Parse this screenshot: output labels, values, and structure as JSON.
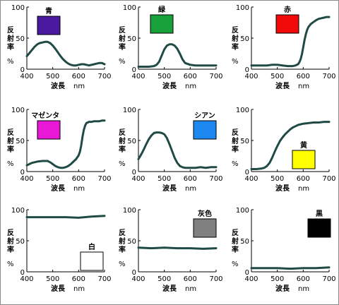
{
  "chart_data": [
    {
      "type": "line",
      "color_label": "青",
      "swatch_color": "#4b19a0",
      "ylabel": "反射率 %",
      "xlabel": "波長",
      "xunit": "nm",
      "xlim": [
        400,
        700
      ],
      "ylim": [
        0,
        100
      ],
      "x_ticks": [
        400,
        500,
        600,
        700
      ],
      "y_ticks": [
        0,
        50,
        100
      ],
      "x": [
        400,
        410,
        420,
        430,
        440,
        450,
        460,
        470,
        480,
        490,
        500,
        510,
        520,
        530,
        540,
        550,
        560,
        570,
        580,
        590,
        600,
        610,
        620,
        630,
        640,
        650,
        660,
        670,
        680,
        690,
        700
      ],
      "y": [
        21,
        26,
        31,
        36,
        40,
        42,
        43,
        44,
        44,
        42,
        38,
        33,
        27,
        21,
        16,
        12,
        9,
        7,
        6,
        6,
        7,
        8,
        8,
        7,
        6,
        7,
        8,
        9,
        10,
        10,
        8
      ]
    },
    {
      "type": "line",
      "color_label": "緑",
      "swatch_color": "#18a03a",
      "ylabel": "反射率 %",
      "xlabel": "波長",
      "xunit": "nm",
      "xlim": [
        400,
        700
      ],
      "ylim": [
        0,
        100
      ],
      "x_ticks": [
        400,
        500,
        600,
        700
      ],
      "y_ticks": [
        0,
        50,
        100
      ],
      "x": [
        400,
        420,
        440,
        460,
        470,
        480,
        490,
        500,
        510,
        520,
        530,
        540,
        550,
        560,
        570,
        580,
        600,
        620,
        640,
        660,
        680,
        700
      ],
      "y": [
        4,
        4,
        4,
        5,
        7,
        12,
        22,
        32,
        38,
        40,
        40,
        38,
        33,
        25,
        16,
        10,
        7,
        6,
        6,
        6,
        6,
        6
      ]
    },
    {
      "type": "line",
      "color_label": "赤",
      "swatch_color": "#f00a0a",
      "ylabel": "反射率 %",
      "xlabel": "波長",
      "xunit": "nm",
      "xlim": [
        400,
        700
      ],
      "ylim": [
        0,
        100
      ],
      "x_ticks": [
        400,
        500,
        600,
        700
      ],
      "y_ticks": [
        0,
        50,
        100
      ],
      "x": [
        400,
        420,
        440,
        460,
        480,
        500,
        520,
        540,
        560,
        570,
        580,
        585,
        590,
        595,
        600,
        605,
        610,
        615,
        620,
        630,
        640,
        650,
        660,
        670,
        680,
        690,
        700
      ],
      "y": [
        6,
        6,
        6,
        6,
        7,
        7,
        6,
        5,
        5,
        6,
        8,
        11,
        16,
        24,
        35,
        47,
        56,
        63,
        68,
        73,
        76,
        79,
        81,
        82,
        83,
        84,
        84
      ]
    },
    {
      "type": "line",
      "color_label": "マゼンタ",
      "swatch_color": "#e818d6",
      "ylabel": "反射率 %",
      "xlabel": "波長",
      "xunit": "nm",
      "xlim": [
        400,
        700
      ],
      "ylim": [
        0,
        100
      ],
      "x_ticks": [
        400,
        500,
        600,
        700
      ],
      "y_ticks": [
        0,
        50,
        100
      ],
      "x": [
        400,
        410,
        420,
        430,
        440,
        460,
        480,
        490,
        500,
        510,
        520,
        530,
        540,
        550,
        560,
        570,
        580,
        590,
        600,
        605,
        610,
        615,
        620,
        625,
        630,
        640,
        650,
        660,
        670,
        680,
        690,
        700
      ],
      "y": [
        10,
        12,
        14,
        15,
        16,
        17,
        17,
        15,
        12,
        9,
        7,
        6,
        6,
        7,
        9,
        12,
        16,
        20,
        26,
        32,
        42,
        56,
        67,
        74,
        78,
        80,
        80,
        81,
        81,
        81,
        82,
        82
      ]
    },
    {
      "type": "line",
      "color_label": "シアン",
      "swatch_color": "#1c88f0",
      "ylabel": "反射率 %",
      "xlabel": "波長",
      "xunit": "nm",
      "xlim": [
        400,
        700
      ],
      "ylim": [
        0,
        100
      ],
      "x_ticks": [
        400,
        500,
        600,
        700
      ],
      "y_ticks": [
        0,
        50,
        100
      ],
      "x": [
        400,
        410,
        420,
        430,
        440,
        450,
        460,
        470,
        480,
        490,
        500,
        510,
        520,
        530,
        540,
        550,
        560,
        570,
        580,
        590,
        600,
        620,
        640,
        660,
        680,
        700
      ],
      "y": [
        20,
        27,
        35,
        44,
        52,
        58,
        62,
        63,
        63,
        62,
        60,
        54,
        44,
        33,
        22,
        14,
        9,
        7,
        6,
        6,
        6,
        6,
        7,
        6,
        7,
        7
      ]
    },
    {
      "type": "line",
      "color_label": "黄",
      "swatch_color": "#ffff00",
      "ylabel": "反射率 %",
      "xlabel": "波長",
      "xunit": "nm",
      "xlim": [
        400,
        700
      ],
      "ylim": [
        0,
        100
      ],
      "x_ticks": [
        400,
        500,
        600,
        700
      ],
      "y_ticks": [
        0,
        50,
        100
      ],
      "x": [
        400,
        420,
        440,
        450,
        460,
        470,
        480,
        490,
        500,
        510,
        520,
        530,
        540,
        550,
        560,
        570,
        580,
        600,
        620,
        640,
        660,
        680,
        700
      ],
      "y": [
        4,
        4,
        5,
        6,
        9,
        14,
        22,
        32,
        41,
        49,
        55,
        60,
        64,
        68,
        71,
        73,
        75,
        77,
        78,
        79,
        79,
        80,
        80
      ]
    },
    {
      "type": "line",
      "color_label": "白",
      "swatch_color": "#ffffff",
      "ylabel": "反射率 %",
      "xlabel": "波長",
      "xunit": "nm",
      "xlim": [
        400,
        700
      ],
      "ylim": [
        0,
        100
      ],
      "x_ticks": [
        400,
        500,
        600,
        700
      ],
      "y_ticks": [
        0,
        50,
        100
      ],
      "x": [
        400,
        450,
        500,
        550,
        600,
        650,
        700
      ],
      "y": [
        88,
        88,
        88,
        88,
        87,
        89,
        90
      ]
    },
    {
      "type": "line",
      "color_label": "灰色",
      "swatch_color": "#808080",
      "ylabel": "反射率 %",
      "xlabel": "波長",
      "xunit": "nm",
      "xlim": [
        400,
        700
      ],
      "ylim": [
        0,
        100
      ],
      "x_ticks": [
        400,
        500,
        600,
        700
      ],
      "y_ticks": [
        0,
        50,
        100
      ],
      "x": [
        400,
        450,
        500,
        550,
        600,
        650,
        700
      ],
      "y": [
        39,
        38,
        39,
        38,
        38,
        37,
        38
      ]
    },
    {
      "type": "line",
      "color_label": "黒",
      "swatch_color": "#000000",
      "ylabel": "反射率 %",
      "xlabel": "波長",
      "xunit": "nm",
      "xlim": [
        400,
        700
      ],
      "ylim": [
        0,
        100
      ],
      "x_ticks": [
        400,
        500,
        600,
        700
      ],
      "y_ticks": [
        0,
        50,
        100
      ],
      "x": [
        400,
        450,
        500,
        550,
        600,
        650,
        700
      ],
      "y": [
        6,
        6,
        6,
        5,
        6,
        6,
        7
      ]
    }
  ]
}
